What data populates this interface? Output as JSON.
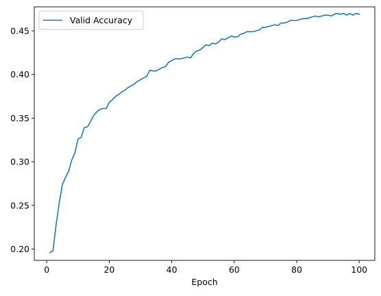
{
  "chart_data": {
    "type": "line",
    "title": "",
    "xlabel": "Epoch",
    "ylabel": "",
    "xlim": [
      -4,
      105
    ],
    "ylim": [
      0.187,
      0.4775
    ],
    "xticks": [
      0,
      20,
      40,
      60,
      80,
      100
    ],
    "yticks": [
      0.2,
      0.25,
      0.3,
      0.35,
      0.4,
      0.45
    ],
    "ytick_labels": [
      "0.20",
      "0.25",
      "0.30",
      "0.35",
      "0.40",
      "0.45"
    ],
    "grid": false,
    "legend": "top-left",
    "series": [
      {
        "name": "Valid Accuracy",
        "color": "#1f77b4",
        "x": [
          1,
          2,
          3,
          4,
          5,
          6,
          7,
          8,
          9,
          10,
          11,
          12,
          13,
          14,
          15,
          16,
          17,
          18,
          19,
          20,
          21,
          22,
          23,
          24,
          25,
          26,
          27,
          28,
          29,
          30,
          31,
          32,
          33,
          34,
          35,
          36,
          37,
          38,
          39,
          40,
          41,
          42,
          43,
          44,
          45,
          46,
          47,
          48,
          49,
          50,
          51,
          52,
          53,
          54,
          55,
          56,
          57,
          58,
          59,
          60,
          61,
          62,
          63,
          64,
          65,
          66,
          67,
          68,
          69,
          70,
          71,
          72,
          73,
          74,
          75,
          76,
          77,
          78,
          79,
          80,
          81,
          82,
          83,
          84,
          85,
          86,
          87,
          88,
          89,
          90,
          91,
          92,
          93,
          94,
          95,
          96,
          97,
          98,
          99,
          100
        ],
        "values": [
          0.196,
          0.198,
          0.228,
          0.253,
          0.274,
          0.282,
          0.289,
          0.302,
          0.31,
          0.326,
          0.328,
          0.339,
          0.34,
          0.346,
          0.353,
          0.357,
          0.36,
          0.361,
          0.361,
          0.368,
          0.371,
          0.375,
          0.377,
          0.38,
          0.382,
          0.385,
          0.387,
          0.389,
          0.392,
          0.394,
          0.396,
          0.398,
          0.405,
          0.404,
          0.404,
          0.406,
          0.408,
          0.409,
          0.414,
          0.416,
          0.418,
          0.418,
          0.418,
          0.419,
          0.42,
          0.419,
          0.424,
          0.427,
          0.428,
          0.431,
          0.434,
          0.433,
          0.436,
          0.435,
          0.437,
          0.441,
          0.44,
          0.442,
          0.444,
          0.443,
          0.443,
          0.446,
          0.447,
          0.449,
          0.449,
          0.449,
          0.45,
          0.451,
          0.454,
          0.454,
          0.455,
          0.456,
          0.457,
          0.456,
          0.459,
          0.459,
          0.46,
          0.462,
          0.462,
          0.462,
          0.463,
          0.464,
          0.464,
          0.465,
          0.466,
          0.467,
          0.466,
          0.467,
          0.468,
          0.468,
          0.467,
          0.469,
          0.47,
          0.469,
          0.47,
          0.468,
          0.47,
          0.468,
          0.47,
          0.469
        ]
      }
    ]
  }
}
